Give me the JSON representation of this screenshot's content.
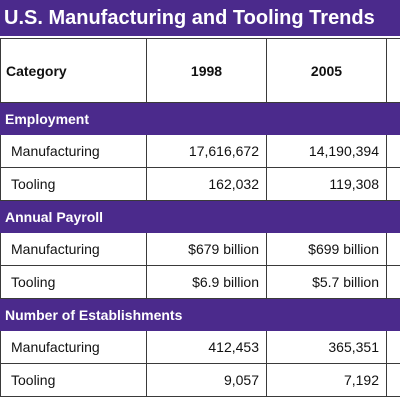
{
  "title": "U.S. Manufacturing and Tooling Trends",
  "accent_color": "#4b2a8c",
  "columns": [
    "Category",
    "1998",
    "2005",
    ""
  ],
  "sections": [
    {
      "name": "Employment",
      "rows": [
        {
          "label": "Manufacturing",
          "values": [
            "17,616,672",
            "14,190,394",
            ""
          ]
        },
        {
          "label": "Tooling",
          "values": [
            "162,032",
            "119,308",
            ""
          ]
        }
      ]
    },
    {
      "name": "Annual Payroll",
      "rows": [
        {
          "label": "Manufacturing",
          "values": [
            "$679 billion",
            "$699 billion",
            ""
          ]
        },
        {
          "label": "Tooling",
          "values": [
            "$6.9 billion",
            "$5.7 billion",
            ""
          ]
        }
      ]
    },
    {
      "name": "Number of Establishments",
      "rows": [
        {
          "label": "Manufacturing",
          "values": [
            "412,453",
            "365,351",
            ""
          ]
        },
        {
          "label": "Tooling",
          "values": [
            "9,057",
            "7,192",
            ""
          ]
        }
      ]
    }
  ]
}
